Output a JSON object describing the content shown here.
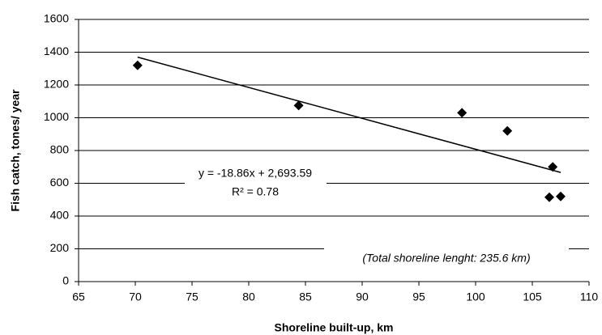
{
  "chart_data": {
    "type": "scatter",
    "x_label": "Shoreline built-up, km",
    "y_label": "Fish catch, tones/ year",
    "series": [
      {
        "name": "Fish catch",
        "color": "#000000",
        "x": [
          70.2,
          84.4,
          98.8,
          102.8,
          106.8,
          106.5,
          107.5
        ],
        "values": [
          1320,
          1075,
          1030,
          920,
          700,
          515,
          520
        ]
      }
    ],
    "trendline": {
      "slope": -18.86,
      "intercept": 2693.59,
      "equation": "y = -18.86x + 2,693.59",
      "r2_label": "R² = 0.78"
    },
    "annotation": "(Total shoreline lenght: 235.6 km)",
    "xlim": [
      65,
      110
    ],
    "xticks": [
      65,
      70,
      75,
      80,
      85,
      90,
      95,
      100,
      105,
      110
    ],
    "ylim": [
      0,
      1600
    ],
    "yticks": [
      0,
      200,
      400,
      600,
      800,
      1000,
      1200,
      1400,
      1600
    ],
    "grid": true
  }
}
